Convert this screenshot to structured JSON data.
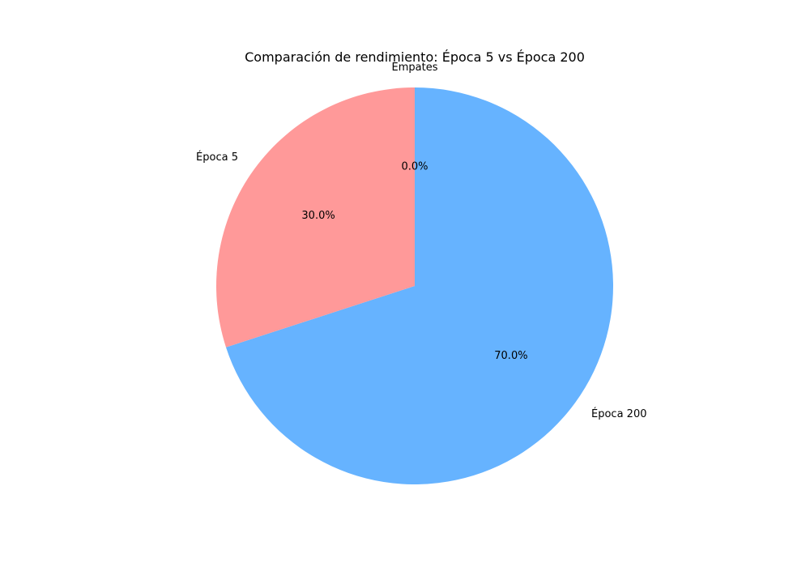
{
  "chart_data": {
    "type": "pie",
    "title": "Comparación de rendimiento: Época 5 vs Época 200",
    "start_angle_deg": 90,
    "direction": "clockwise",
    "slices": [
      {
        "label": "Empates",
        "value": 0.0,
        "pct_label": "0.0%",
        "color": "#66b3ff"
      },
      {
        "label": "Época 200",
        "value": 70.0,
        "pct_label": "70.0%",
        "color": "#66b3ff"
      },
      {
        "label": "Época 5",
        "value": 30.0,
        "pct_label": "30.0%",
        "color": "#ff9999"
      }
    ]
  }
}
